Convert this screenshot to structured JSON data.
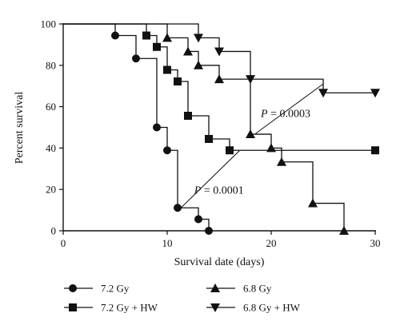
{
  "chart_data": {
    "type": "line",
    "step": true,
    "xlabel": "Survival date (days)",
    "ylabel": "Percent survival",
    "xlim": [
      0,
      30
    ],
    "ylim": [
      0,
      100
    ],
    "xticks": [
      "0",
      "10",
      "20",
      "30"
    ],
    "yticks": [
      "0",
      "20",
      "40",
      "60",
      "80",
      "100"
    ],
    "grid": false,
    "legend_position": "bottom",
    "series": [
      {
        "name": "7.2 Gy",
        "marker": "circle",
        "x": [
          0,
          5,
          7,
          9,
          10,
          11,
          13,
          14
        ],
        "y": [
          100,
          94.4,
          83.3,
          50,
          38.9,
          11.1,
          5.6,
          0
        ]
      },
      {
        "name": "7.2 Gy + HW",
        "marker": "square",
        "x": [
          0,
          8,
          9,
          10,
          11,
          12,
          14,
          16,
          30
        ],
        "y": [
          100,
          94.4,
          88.9,
          77.8,
          72.2,
          55.6,
          44.4,
          38.9,
          38.9
        ]
      },
      {
        "name": "6.8 Gy",
        "marker": "triangle-up",
        "x": [
          0,
          10,
          12,
          13,
          15,
          18,
          20,
          21,
          24,
          27
        ],
        "y": [
          100,
          93.3,
          86.7,
          80,
          73.3,
          46.7,
          40,
          33.3,
          13.3,
          0
        ]
      },
      {
        "name": "6.8 Gy + HW",
        "marker": "triangle-down",
        "x": [
          0,
          13,
          15,
          18,
          25,
          30
        ],
        "y": [
          100,
          93.3,
          86.7,
          73.3,
          66.7,
          66.7
        ]
      }
    ],
    "annotations": [
      {
        "p": "P",
        "eq": " = 0.0003",
        "x": 19,
        "y": 55,
        "pointer": {
          "x1": 18.5,
          "y1": 47,
          "x2": 25,
          "y2": 71
        }
      },
      {
        "p": "P",
        "eq": " = 0.0001",
        "x": 12.6,
        "y": 18,
        "pointer": {
          "x1": 11.3,
          "y1": 11,
          "x2": 17,
          "y2": 39
        }
      }
    ]
  },
  "colors": {
    "series": "#111111",
    "axis": "#111111"
  }
}
